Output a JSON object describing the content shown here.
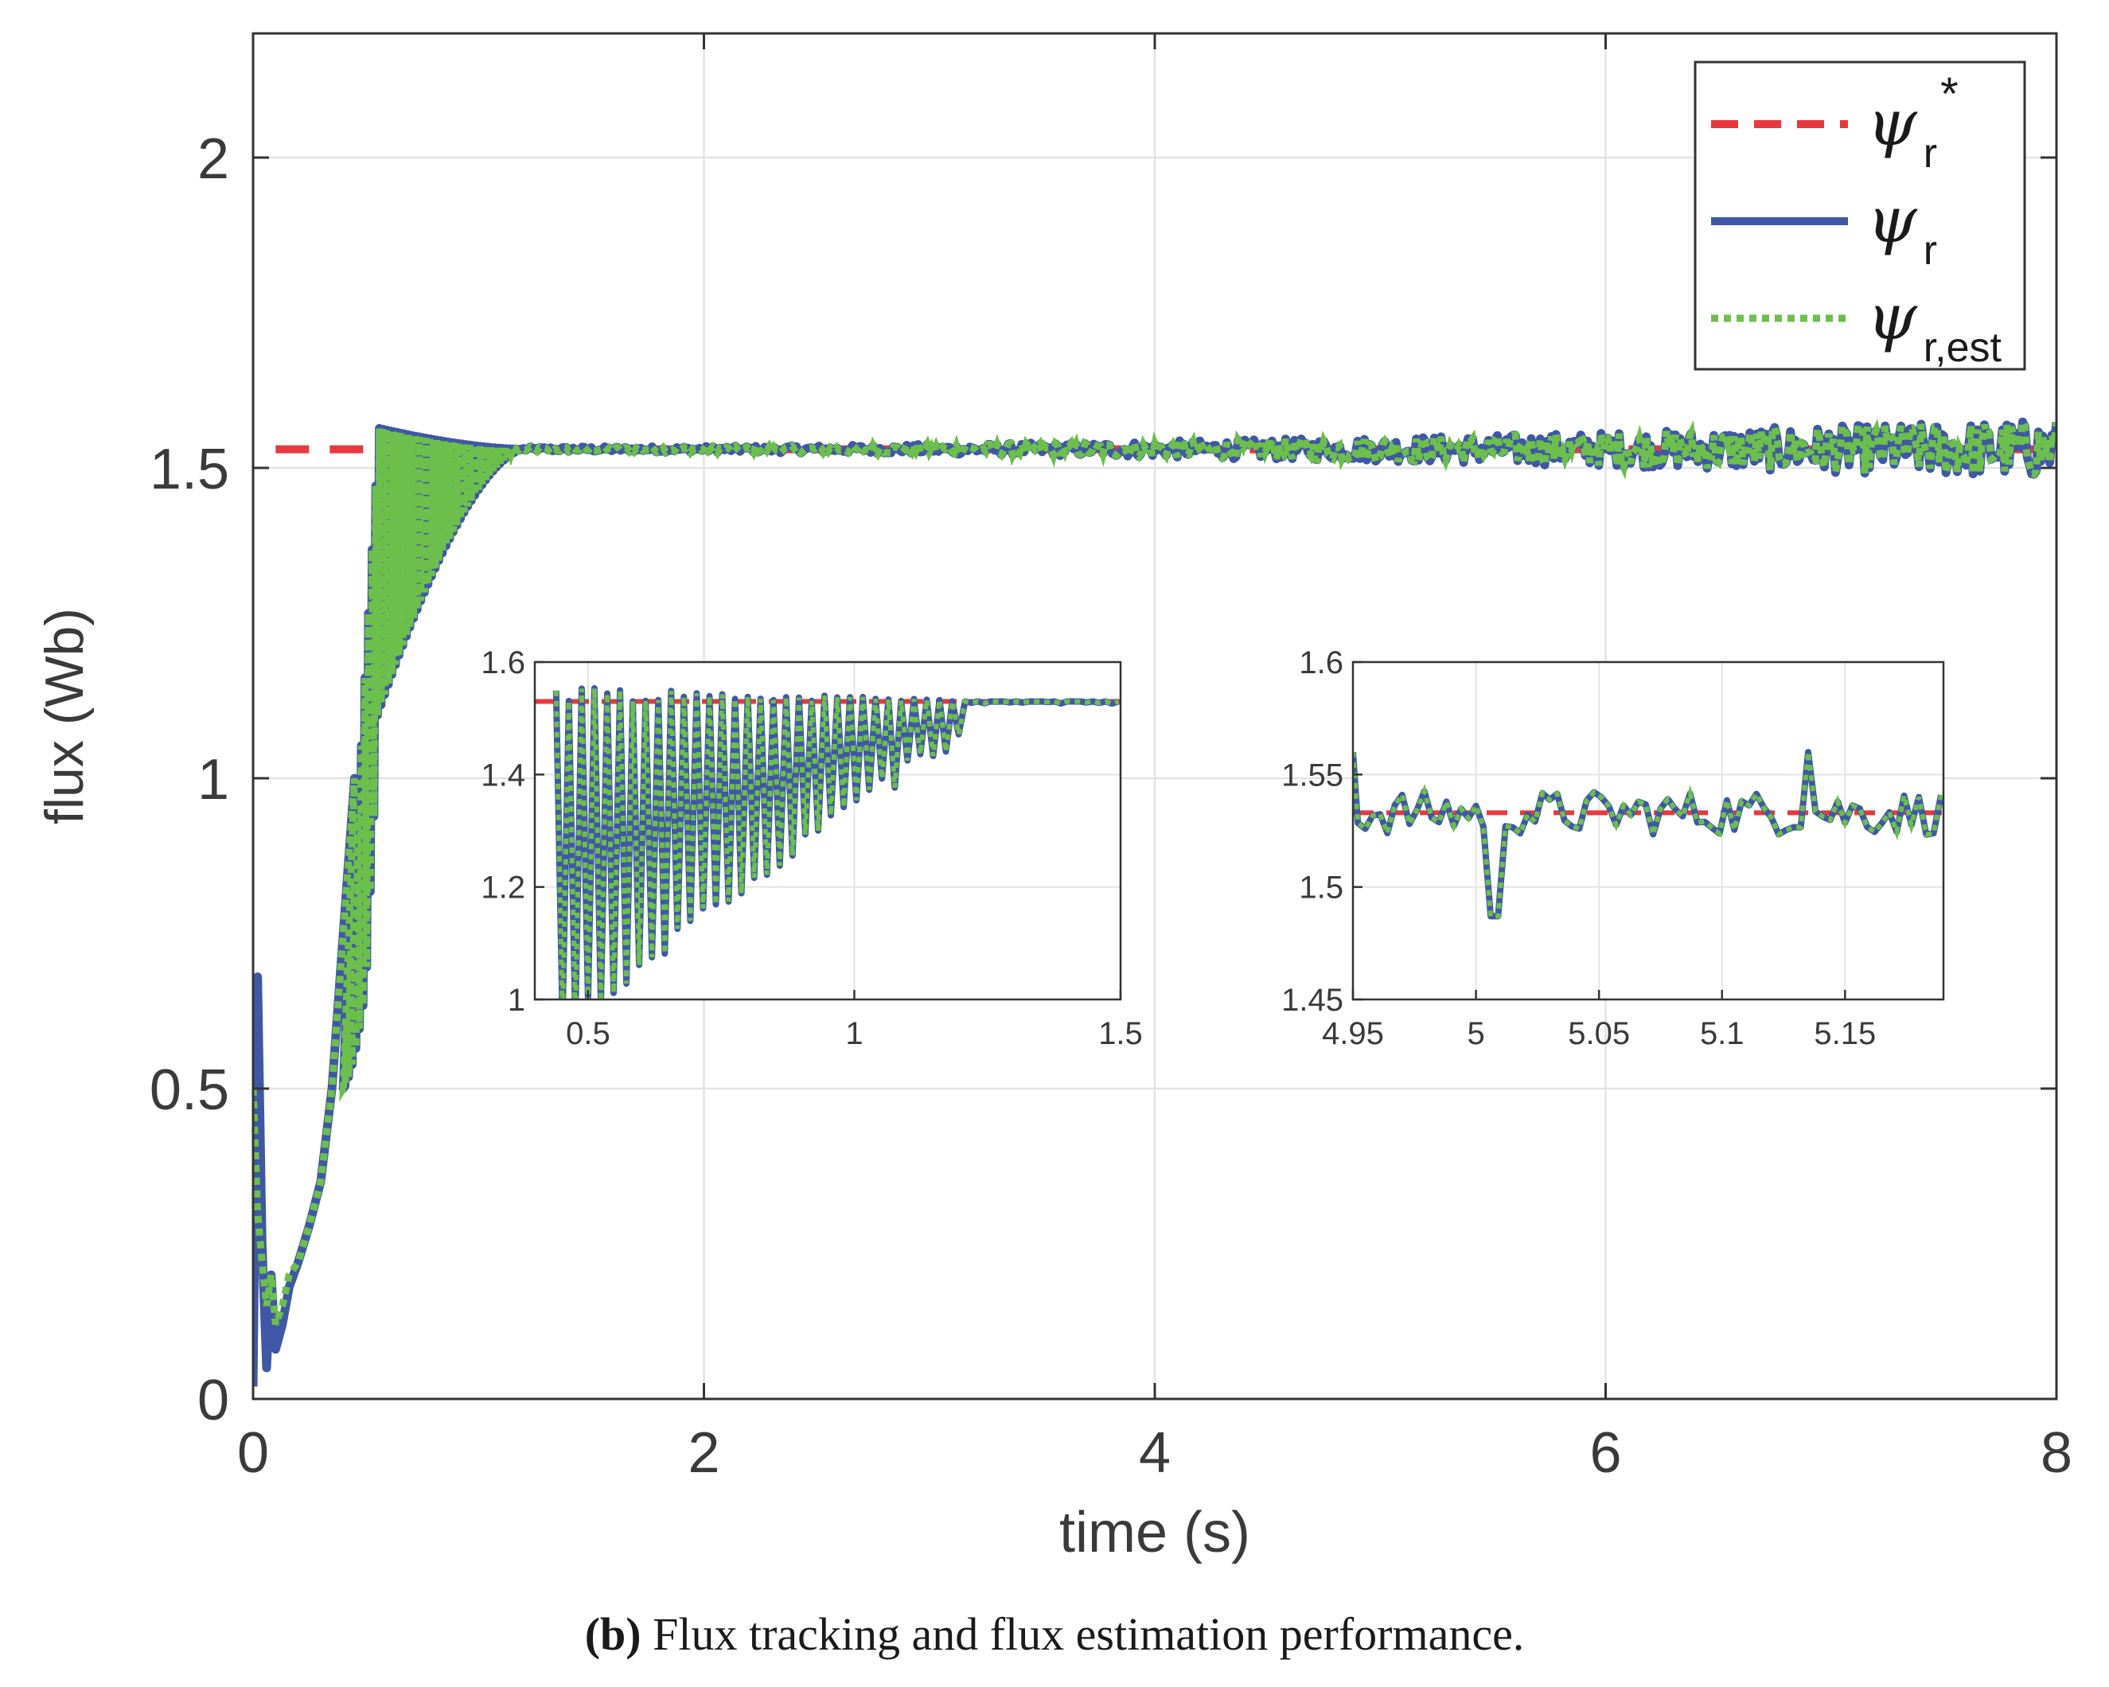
{
  "chart_data": [
    {
      "type": "line",
      "name": "main",
      "xlabel": "time (s)",
      "ylabel": "flux (Wb)",
      "xlim": [
        0,
        8
      ],
      "ylim": [
        0,
        2.2
      ],
      "xticks": [
        0,
        2,
        4,
        6,
        8
      ],
      "xtick_labels": [
        "0",
        "2",
        "4",
        "6",
        "8"
      ],
      "yticks": [
        0,
        0.5,
        1,
        1.5,
        2
      ],
      "ytick_labels": [
        "0",
        "0.5",
        "1",
        "1.5",
        "2"
      ],
      "grid": true,
      "legend_position": "top-right",
      "legend": [
        {
          "symbol": "ψ",
          "sub": "r",
          "sup": "*",
          "style": "dashed"
        },
        {
          "symbol": "ψ",
          "sub": "r",
          "sup": "",
          "style": "solid"
        },
        {
          "symbol": "ψ",
          "sub": "r,est",
          "sup": "",
          "style": "dotted"
        }
      ],
      "reference_value": 1.53,
      "reference_start": 0.1,
      "series": [
        {
          "name": "ψr*",
          "style": "dashed",
          "color": "#e8383d",
          "x": [
            0.1,
            8.0
          ],
          "y": [
            1.53,
            1.53
          ]
        },
        {
          "name": "ψr",
          "style": "solid",
          "color": "#3f57a6",
          "x": [
            0,
            0.02,
            0.04,
            0.06,
            0.08,
            0.1,
            0.13,
            0.16,
            0.2,
            0.25,
            0.3,
            0.35,
            0.4,
            0.45,
            0.5,
            0.55,
            0.6,
            0.7,
            0.8,
            0.9,
            1.0,
            1.1,
            1.2,
            1.5,
            2.0,
            3.0,
            4.0,
            5.0,
            6.0,
            7.0,
            8.0
          ],
          "y": [
            0.02,
            0.68,
            0.25,
            0.05,
            0.2,
            0.08,
            0.12,
            0.18,
            0.22,
            0.28,
            0.35,
            0.5,
            0.75,
            1.0,
            1.2,
            1.45,
            1.55,
            1.52,
            1.5,
            1.53,
            1.52,
            1.53,
            1.53,
            1.53,
            1.53,
            1.535,
            1.53,
            1.535,
            1.53,
            1.535,
            1.53
          ]
        },
        {
          "name": "ψr,est",
          "style": "dotted",
          "color": "#6cbf4b",
          "x": [
            0,
            0.02,
            0.04,
            0.06,
            0.08,
            0.1,
            0.13,
            0.16,
            0.2,
            0.25,
            0.3,
            0.35,
            0.4,
            0.45,
            0.5,
            0.55,
            0.6,
            0.7,
            0.8,
            0.9,
            1.0,
            1.1,
            1.2,
            1.5,
            2.0,
            3.0,
            4.0,
            5.0,
            6.0,
            7.0,
            8.0
          ],
          "y": [
            0.5,
            0.3,
            0.22,
            0.15,
            0.2,
            0.12,
            0.15,
            0.2,
            0.22,
            0.28,
            0.35,
            0.5,
            0.75,
            1.0,
            1.2,
            1.45,
            1.55,
            1.52,
            1.5,
            1.53,
            1.52,
            1.53,
            1.53,
            1.53,
            1.53,
            1.535,
            1.53,
            1.535,
            1.53,
            1.535,
            1.53
          ]
        }
      ]
    },
    {
      "type": "line",
      "name": "inset-1",
      "xlim": [
        0.4,
        1.5
      ],
      "ylim": [
        1.0,
        1.6
      ],
      "xticks": [
        0.5,
        1,
        1.5
      ],
      "xtick_labels": [
        "0.5",
        "1",
        "1.5"
      ],
      "yticks": [
        1,
        1.2,
        1.4,
        1.6
      ],
      "ytick_labels": [
        "1",
        "1.2",
        "1.4",
        "1.6"
      ],
      "reference_value": 1.53,
      "series_note": "decaying oscillation settling to 1.53"
    },
    {
      "type": "line",
      "name": "inset-2",
      "xlim": [
        4.95,
        5.19
      ],
      "ylim": [
        1.45,
        1.6
      ],
      "xticks": [
        4.95,
        5,
        5.05,
        5.1,
        5.15
      ],
      "xtick_labels": [
        "4.95",
        "5",
        "5.05",
        "5.1",
        "5.15"
      ],
      "yticks": [
        1.45,
        1.5,
        1.55,
        1.6
      ],
      "ytick_labels": [
        "1.45",
        "1.5",
        "1.55",
        "1.6"
      ],
      "reference_value": 1.533,
      "series_note": "small ripple around 1.533"
    }
  ],
  "caption": {
    "label": "(b)",
    "text": " Flux tracking and flux estimation performance."
  },
  "colors": {
    "reference": "#e8383d",
    "actual": "#3f57a6",
    "estimate": "#6cbf4b",
    "grid": "#e3e3e3",
    "axis": "#333333"
  }
}
